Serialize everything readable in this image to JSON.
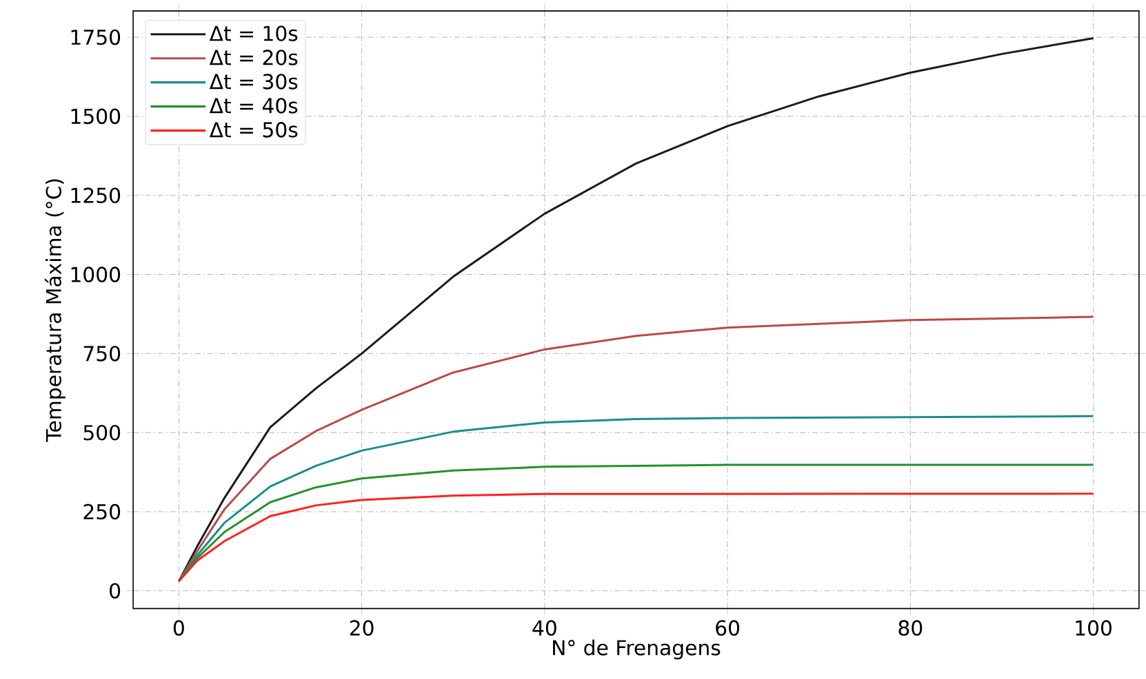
{
  "chart_data": {
    "type": "line",
    "xlabel": "N° de Frenagens",
    "ylabel": "Temperatura Máxima (°C)",
    "xlim": [
      -5,
      105
    ],
    "ylim": [
      -56,
      1833
    ],
    "xticks": [
      0,
      20,
      40,
      60,
      80,
      100
    ],
    "yticks": [
      0,
      250,
      500,
      750,
      1000,
      1250,
      1500,
      1750
    ],
    "grid": true,
    "legend": "top left",
    "line_style": "solid",
    "series": [
      {
        "name": "Δt = 10s",
        "color": "#1a1a1a",
        "x": [
          0,
          2,
          5,
          10,
          15,
          20,
          30,
          40,
          50,
          60,
          70,
          80,
          90,
          100
        ],
        "values": [
          30,
          140,
          294,
          517,
          640,
          750,
          993,
          1192,
          1351,
          1469,
          1563,
          1638,
          1697,
          1747
        ]
      },
      {
        "name": "Δt = 20s",
        "color": "#b94a48",
        "x": [
          0,
          2,
          5,
          10,
          15,
          20,
          30,
          40,
          50,
          60,
          80,
          100
        ],
        "values": [
          30,
          125,
          258,
          417,
          505,
          572,
          690,
          763,
          806,
          832,
          856,
          866
        ]
      },
      {
        "name": "Δt = 30s",
        "color": "#1a8c8c",
        "x": [
          0,
          2,
          5,
          10,
          15,
          20,
          30,
          40,
          50,
          60,
          100
        ],
        "values": [
          30,
          112,
          215,
          330,
          395,
          443,
          503,
          532,
          543,
          546,
          552
        ]
      },
      {
        "name": "Δt = 40s",
        "color": "#22922a",
        "x": [
          0,
          2,
          5,
          10,
          15,
          20,
          30,
          40,
          60,
          100
        ],
        "values": [
          30,
          103,
          186,
          280,
          327,
          355,
          380,
          392,
          398,
          398
        ]
      },
      {
        "name": "Δt = 50s",
        "color": "#ff2020",
        "x": [
          0,
          2,
          5,
          10,
          15,
          20,
          30,
          40,
          100
        ],
        "values": [
          30,
          95,
          157,
          236,
          270,
          287,
          301,
          306,
          307
        ]
      }
    ]
  }
}
